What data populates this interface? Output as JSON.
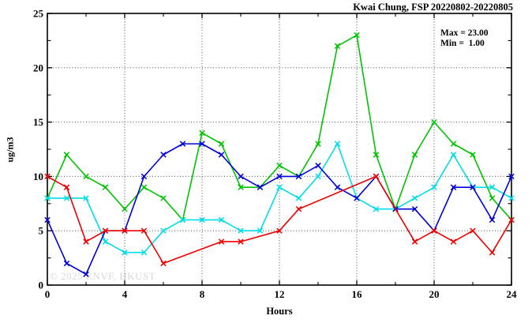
{
  "title": "Kwai Chung, FSP 20220802-20220805",
  "annotation": {
    "max_label": "Max = 23.00",
    "min_label": "Min =  1.00"
  },
  "watermark": "© 2025 ENVF, HKUST",
  "chart_data": {
    "type": "line",
    "title": "Kwai Chung, FSP 20220802-20220805",
    "xlabel": "Hours",
    "ylabel": "ug/m3",
    "xlim": [
      0,
      24
    ],
    "ylim": [
      0,
      25
    ],
    "xticks_major": [
      0,
      4,
      8,
      12,
      16,
      20,
      24
    ],
    "xticks_minor": [
      2,
      6,
      10,
      14,
      18,
      22
    ],
    "yticks_major": [
      0,
      5,
      10,
      15,
      20,
      25
    ],
    "yticks_minor": [
      2.5,
      7.5,
      12.5,
      17.5,
      22.5
    ],
    "grid": "dotted-at-major-ticks",
    "legend": "none",
    "marker": "asterisk-cross",
    "x": [
      0,
      1,
      2,
      3,
      4,
      5,
      6,
      7,
      8,
      9,
      10,
      11,
      12,
      13,
      14,
      15,
      16,
      17,
      18,
      19,
      20,
      21,
      22,
      23,
      24
    ],
    "series": [
      {
        "name": "green",
        "color": "#00c400",
        "values": [
          8,
          12,
          10,
          9,
          7,
          9,
          8,
          6,
          14,
          13,
          9,
          9,
          11,
          10,
          13,
          22,
          23,
          12,
          7,
          12,
          15,
          13,
          12,
          8,
          6
        ]
      },
      {
        "name": "cyan",
        "color": "#00dde8",
        "values": [
          8,
          8,
          8,
          4,
          3,
          3,
          5,
          6,
          6,
          6,
          5,
          5,
          9,
          8,
          10,
          13,
          8,
          7,
          7,
          8,
          9,
          12,
          9,
          9,
          8
        ]
      },
      {
        "name": "blue",
        "color": "#0000dd",
        "values": [
          6,
          2,
          1,
          5,
          5,
          10,
          12,
          13,
          13,
          12,
          10,
          9,
          10,
          10,
          11,
          9,
          8,
          10,
          7,
          7,
          5,
          9,
          9,
          6,
          10
        ]
      },
      {
        "name": "red",
        "color": "#ee0000",
        "values": [
          10,
          9,
          4,
          5,
          5,
          5,
          2,
          null,
          null,
          4,
          4,
          null,
          5,
          7,
          null,
          null,
          null,
          10,
          null,
          4,
          5,
          4,
          5,
          3,
          6
        ]
      }
    ],
    "stats": {
      "max": 23.0,
      "min": 1.0
    }
  }
}
